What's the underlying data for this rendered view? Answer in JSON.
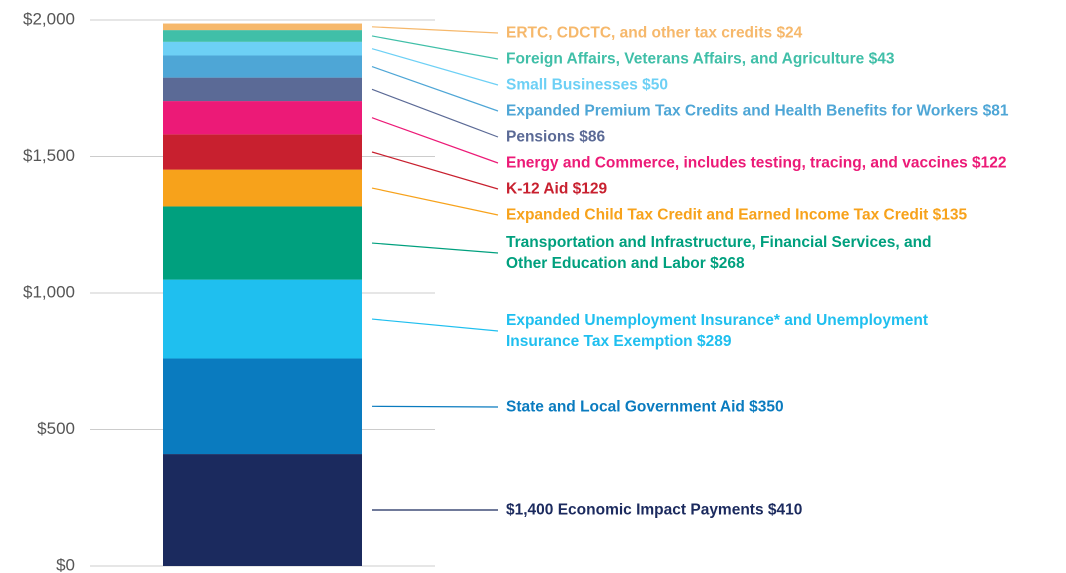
{
  "chart_data": {
    "type": "stacked_bar",
    "series": [
      {
        "name": "$1,400 Economic Impact Payments",
        "color": "#1b2a5e",
        "values": [
          410
        ],
        "value_labels": [
          "$410"
        ]
      },
      {
        "name": "State and Local Government Aid",
        "color": "#0a7bbf",
        "values": [
          350
        ],
        "value_labels": [
          "$350"
        ]
      },
      {
        "name": "Expanded Unemployment Insurance* and Unemployment Insurance Tax Exemption",
        "color": "#1fbfef",
        "values": [
          289
        ],
        "value_labels": [
          "$289"
        ]
      },
      {
        "name": "Transportation and Infrastructure, Financial Services, and Other Education and Labor",
        "color": "#00a07e",
        "values": [
          268
        ],
        "value_labels": [
          "$268"
        ]
      },
      {
        "name": "Expanded Child Tax Credit and Earned Income Tax Credit",
        "color": "#f7a21b",
        "values": [
          135
        ],
        "value_labels": [
          "$135"
        ]
      },
      {
        "name": "K-12 Aid",
        "color": "#c8202f",
        "values": [
          129
        ],
        "value_labels": [
          "$129"
        ]
      },
      {
        "name": "Energy and Commerce, includes testing, tracing, and vaccines",
        "color": "#ec1a77",
        "values": [
          122
        ],
        "value_labels": [
          "$122"
        ]
      },
      {
        "name": "Pensions",
        "color": "#5b6a96",
        "values": [
          86
        ],
        "value_labels": [
          "$86"
        ]
      },
      {
        "name": "Expanded Premium Tax Credits and Health Benefits for Workers",
        "color": "#4ea6d6",
        "values": [
          81
        ],
        "value_labels": [
          "$81"
        ]
      },
      {
        "name": "Small Businesses",
        "color": "#6dd0f5",
        "values": [
          50
        ],
        "value_labels": [
          "$50"
        ]
      },
      {
        "name": "Foreign Affairs, Veterans Affairs, and Agriculture",
        "color": "#40bfa8",
        "values": [
          43
        ],
        "value_labels": [
          "$43"
        ]
      },
      {
        "name": "ERTC, CDCTC, and other tax credits",
        "color": "#f6b86b",
        "values": [
          24
        ],
        "value_labels": [
          "$24"
        ]
      }
    ],
    "ylim": [
      0,
      2000
    ],
    "yticks": [
      {
        "value": 0,
        "label": "$0"
      },
      {
        "value": 500,
        "label": "$500"
      },
      {
        "value": 1000,
        "label": "$1,000"
      },
      {
        "value": 1500,
        "label": "$1,500"
      },
      {
        "value": 2000,
        "label": "$2,000"
      }
    ],
    "grid": true
  }
}
